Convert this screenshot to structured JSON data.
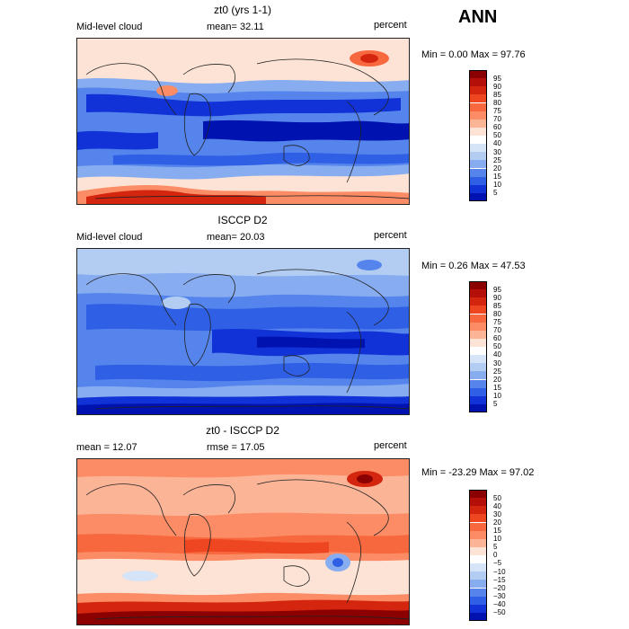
{
  "header": {
    "season": "ANN"
  },
  "panels": [
    {
      "id": "model",
      "title": "zt0 (yrs 1-1)",
      "left_label": "Mid-level cloud",
      "center_label": "mean=  32.11",
      "units": "percent",
      "minmax": "Min =   0.00 Max =  97.76",
      "levels": [
        "95",
        "90",
        "85",
        "80",
        "75",
        "70",
        "60",
        "50",
        "40",
        "30",
        "25",
        "20",
        "15",
        "10",
        "5"
      ],
      "colors": [
        "#8b0000",
        "#b40f08",
        "#d4250e",
        "#ee4621",
        "#f8683e",
        "#fb8c65",
        "#fcb497",
        "#fde3d6",
        "#ffffff",
        "#d6e4f7",
        "#b3cdf2",
        "#87acef",
        "#5585ec",
        "#2e5fe4",
        "#1032d6",
        "#0013b0"
      ]
    },
    {
      "id": "obs",
      "title": "ISCCP D2",
      "left_label": "Mid-level cloud",
      "center_label": "mean=  20.03",
      "units": "percent",
      "minmax": "Min =   0.26 Max =  47.53",
      "levels": [
        "95",
        "90",
        "85",
        "80",
        "75",
        "70",
        "60",
        "50",
        "40",
        "30",
        "25",
        "20",
        "15",
        "10",
        "5"
      ],
      "colors": [
        "#8b0000",
        "#b40f08",
        "#d4250e",
        "#ee4621",
        "#f8683e",
        "#fb8c65",
        "#fcb497",
        "#fde3d6",
        "#ffffff",
        "#d6e4f7",
        "#b3cdf2",
        "#87acef",
        "#5585ec",
        "#2e5fe4",
        "#1032d6",
        "#0013b0"
      ]
    },
    {
      "id": "diff",
      "title": "zt0 - ISCCP D2",
      "left_label": "mean =  12.07",
      "center_label": "rmse =  17.05",
      "units": "percent",
      "minmax": "Min = -23.29 Max =  97.02",
      "levels": [
        "50",
        "40",
        "30",
        "20",
        "15",
        "10",
        "5",
        "0",
        "−5",
        "−10",
        "−15",
        "−20",
        "−30",
        "−40",
        "−50"
      ],
      "colors": [
        "#8b0000",
        "#b40f08",
        "#d4250e",
        "#ee4621",
        "#f8683e",
        "#fb8c65",
        "#fcb497",
        "#fde3d6",
        "#ffffff",
        "#d6e4f7",
        "#b3cdf2",
        "#87acef",
        "#5585ec",
        "#2e5fe4",
        "#1032d6",
        "#0013b0"
      ]
    }
  ]
}
